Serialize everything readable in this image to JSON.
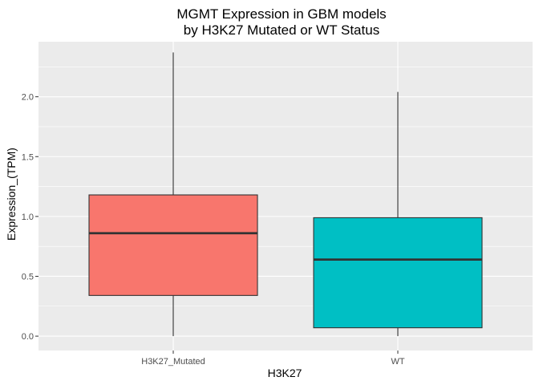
{
  "chart_data": {
    "type": "box",
    "title_lines": [
      "MGMT Expression in GBM models",
      "by H3K27 Mutated or WT Status"
    ],
    "xlabel": "H3K27",
    "ylabel": "Expression_(TPM)",
    "ylim": [
      -0.12,
      2.46
    ],
    "yticks": [
      0.0,
      0.5,
      1.0,
      1.5,
      2.0
    ],
    "ytick_labels": [
      "0.0",
      "0.5",
      "1.0",
      "1.5",
      "2.0"
    ],
    "categories": [
      "H3K27_Mutated",
      "WT"
    ],
    "boxes": [
      {
        "category": "H3K27_Mutated",
        "min": 0.0,
        "q1": 0.34,
        "median": 0.86,
        "q3": 1.18,
        "max": 2.37,
        "fill": "#F8766D"
      },
      {
        "category": "WT",
        "min": 0.0,
        "q1": 0.07,
        "median": 0.64,
        "q3": 0.99,
        "max": 2.04,
        "fill": "#00BFC4"
      }
    ],
    "grid": true,
    "legend": "none"
  },
  "colors": {
    "panel_bg": "#EBEBEB",
    "grid_major": "#FFFFFF",
    "box_outline": "#333333"
  }
}
